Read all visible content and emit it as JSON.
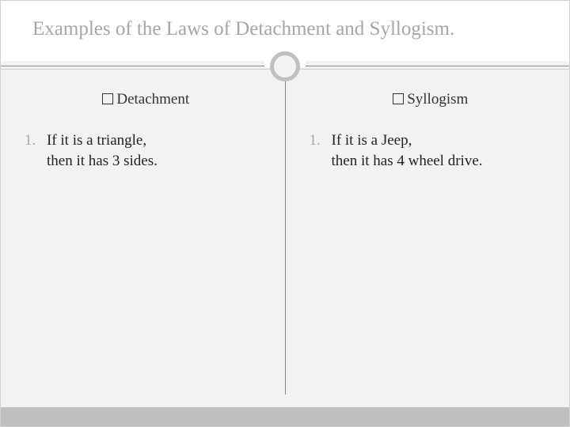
{
  "title": "Examples of the Laws of Detachment and Syllogism.",
  "left": {
    "heading": "Detachment",
    "num": "1.",
    "line1": "If it is a triangle,",
    "line2": "then it has 3 sides."
  },
  "right": {
    "heading": "Syllogism",
    "num": "1.",
    "line1": "If it is a Jeep,",
    "line2": "then it has 4 wheel drive."
  },
  "colors": {
    "title_color": "#a6a6a6",
    "body_bg": "#f2f2f2",
    "title_bg": "#ffffff",
    "ring_border": "#bfbfbf",
    "footer_bg": "#bfbfbf",
    "divider": "#888888"
  }
}
